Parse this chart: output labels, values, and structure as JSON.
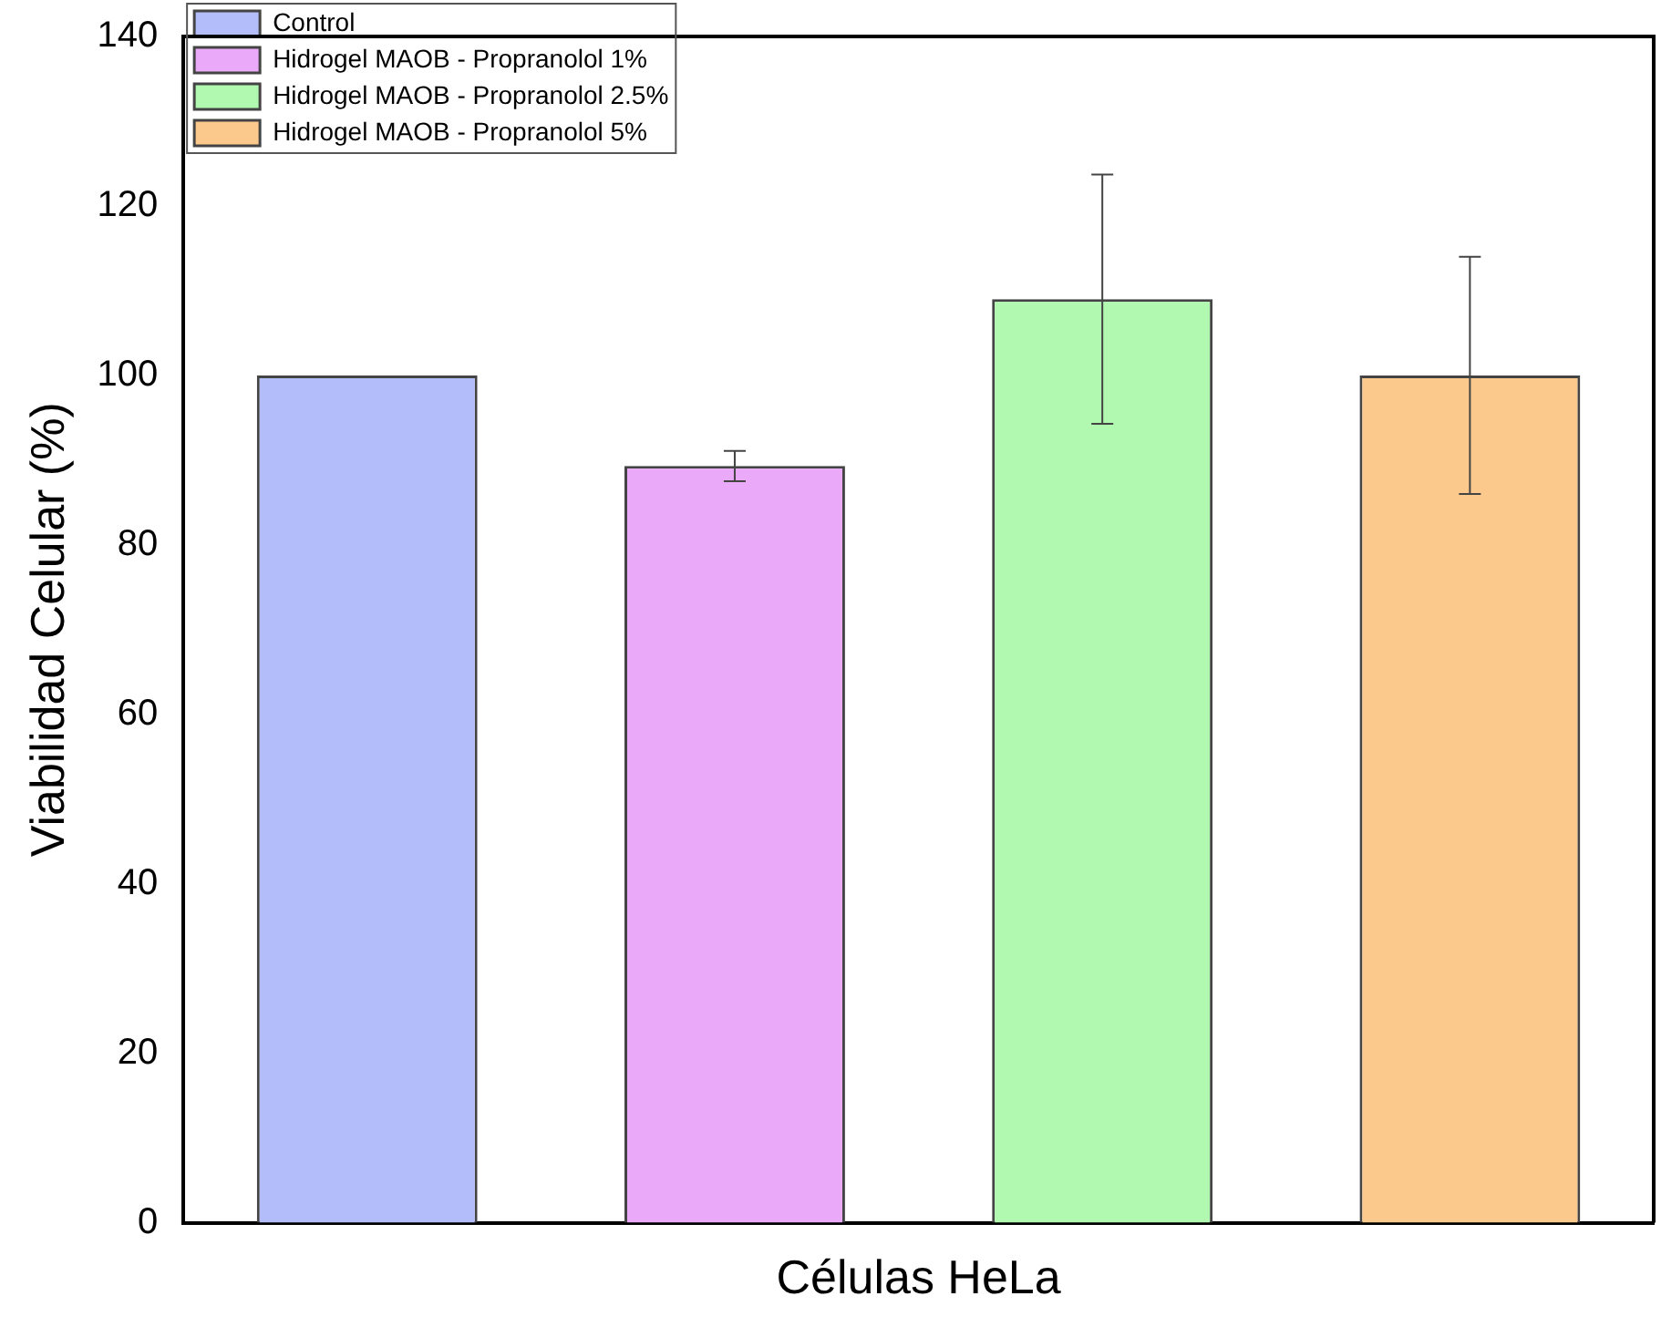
{
  "chart_data": {
    "type": "bar",
    "xlabel": "Células HeLa",
    "ylabel": "Viabilidad Celular (%)",
    "categories": [
      null
    ],
    "series": [
      {
        "name": "Control",
        "color": "#b3bdf9",
        "values": [
          100
        ]
      },
      {
        "name": "Hidrogel MAOB - Propranolol 1%",
        "color": "#eaa9f9",
        "values": [
          89.3
        ],
        "errors": [
          1.8
        ]
      },
      {
        "name": "Hidrogel MAOB - Propranolol 2.5%",
        "color": "#b1f9b1",
        "values": [
          109
        ],
        "errors": [
          14.7
        ]
      },
      {
        "name": "Hidrogel MAOB - Propranolol 5%",
        "color": "#fbc98c",
        "values": [
          100
        ],
        "errors": [
          14
        ]
      }
    ],
    "ylim": [
      0,
      140
    ],
    "yticks": [
      0,
      20,
      40,
      60,
      80,
      100,
      120,
      140
    ],
    "grid": false,
    "legend": "top left"
  }
}
